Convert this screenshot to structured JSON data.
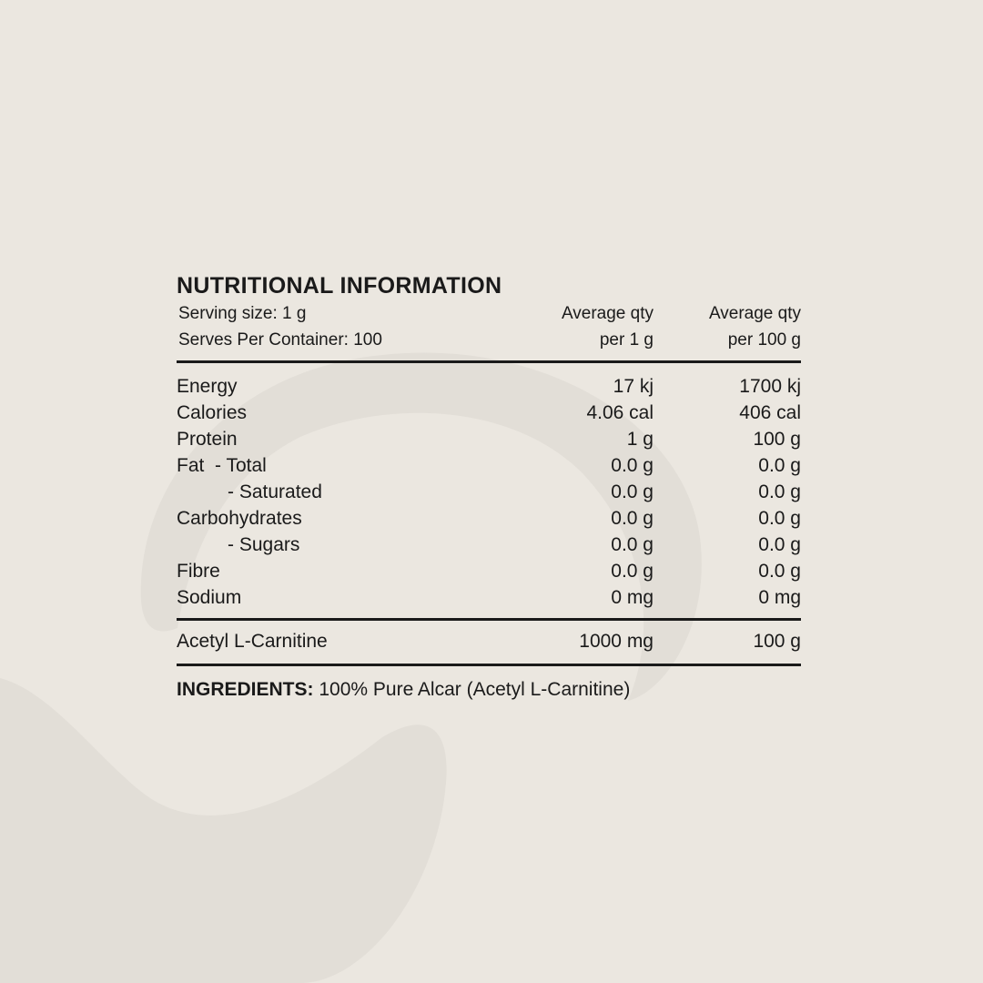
{
  "title": "NUTRITIONAL INFORMATION",
  "header": {
    "serving_size": "Serving size: 1 g",
    "serves_per_container": "Serves Per Container: 100",
    "col1_line1": "Average qty",
    "col1_line2": "per 1 g",
    "col2_line1": "Average qty",
    "col2_line2": "per 100 g"
  },
  "rows": [
    {
      "label": "Energy",
      "per_serve": "17 kj",
      "per_100": "1700 kj"
    },
    {
      "label": "Calories",
      "per_serve": "4.06 cal",
      "per_100": "406 cal"
    },
    {
      "label": "Protein",
      "per_serve": "1 g",
      "per_100": "100 g"
    },
    {
      "label": "Fat  - Total",
      "per_serve": "0.0 g",
      "per_100": "0.0 g"
    },
    {
      "label": "- Saturated",
      "per_serve": "0.0 g",
      "per_100": "0.0 g"
    },
    {
      "label": "Carbohydrates",
      "per_serve": "0.0 g",
      "per_100": "0.0 g"
    },
    {
      "label": "- Sugars",
      "per_serve": "0.0 g",
      "per_100": "0.0 g"
    },
    {
      "label": "Fibre",
      "per_serve": "0.0 g",
      "per_100": "0.0 g"
    },
    {
      "label": "Sodium",
      "per_serve": "0 mg",
      "per_100": "0 mg"
    }
  ],
  "active": {
    "label": "Acetyl L-Carnitine",
    "per_serve": "1000 mg",
    "per_100": "100 g"
  },
  "ingredients": {
    "label": "INGREDIENTS:",
    "text": " 100% Pure Alcar (Acetyl L-Carnitine)"
  },
  "colors": {
    "background": "#ebe7e0",
    "shape": "#e2ded7",
    "text": "#1a1a1a"
  }
}
